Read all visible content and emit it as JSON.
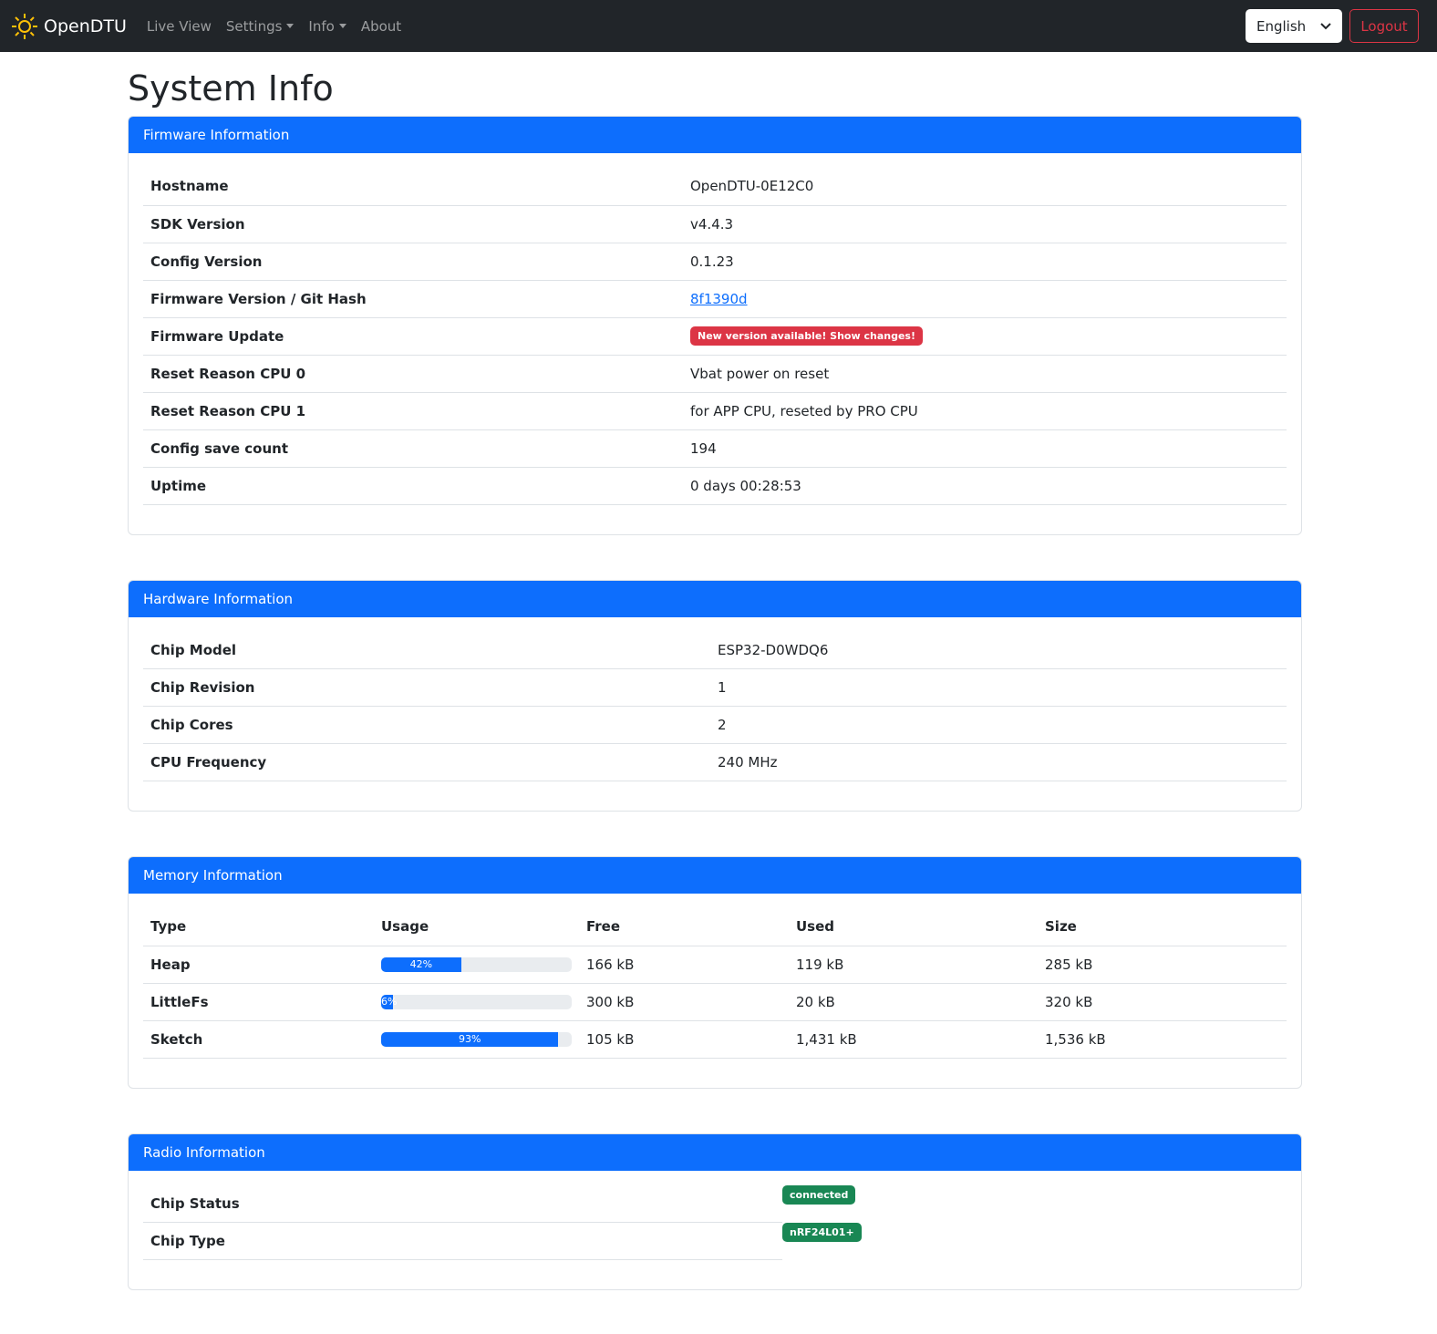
{
  "nav": {
    "brand": "OpenDTU",
    "items": [
      {
        "label": "Live View",
        "dropdown": false
      },
      {
        "label": "Settings",
        "dropdown": true
      },
      {
        "label": "Info",
        "dropdown": true
      },
      {
        "label": "About",
        "dropdown": false
      }
    ],
    "language": "English",
    "logout": "Logout"
  },
  "title": "System Info",
  "firmware": {
    "header": "Firmware Information",
    "rows": [
      {
        "label": "Hostname",
        "value": "OpenDTU-0E12C0"
      },
      {
        "label": "SDK Version",
        "value": "v4.4.3"
      },
      {
        "label": "Config Version",
        "value": "0.1.23"
      },
      {
        "label": "Firmware Version / Git Hash",
        "value": "8f1390d",
        "link": true
      },
      {
        "label": "Firmware Update",
        "value": "New version available! Show changes!",
        "badge": true
      },
      {
        "label": "Reset Reason CPU 0",
        "value": "Vbat power on reset"
      },
      {
        "label": "Reset Reason CPU 1",
        "value": "for APP CPU, reseted by PRO CPU"
      },
      {
        "label": "Config save count",
        "value": "194"
      },
      {
        "label": "Uptime",
        "value": "0 days 00:28:53"
      }
    ]
  },
  "hardware": {
    "header": "Hardware Information",
    "rows": [
      {
        "label": "Chip Model",
        "value": "ESP32-D0WDQ6"
      },
      {
        "label": "Chip Revision",
        "value": "1"
      },
      {
        "label": "Chip Cores",
        "value": "2"
      },
      {
        "label": "CPU Frequency",
        "value": "240 MHz"
      }
    ]
  },
  "memory": {
    "header": "Memory Information",
    "columns": [
      "Type",
      "Usage",
      "Free",
      "Used",
      "Size"
    ],
    "rows": [
      {
        "type": "Heap",
        "usage": 42,
        "usage_label": "42%",
        "free": "166 kB",
        "used": "119 kB",
        "size": "285 kB"
      },
      {
        "type": "LittleFs",
        "usage": 6,
        "usage_label": "6%",
        "free": "300 kB",
        "used": "20 kB",
        "size": "320 kB"
      },
      {
        "type": "Sketch",
        "usage": 93,
        "usage_label": "93%",
        "free": "105 kB",
        "used": "1,431 kB",
        "size": "1,536 kB"
      }
    ]
  },
  "radio": {
    "header": "Radio Information",
    "rows": [
      {
        "label": "Chip Status",
        "value": "connected"
      },
      {
        "label": "Chip Type",
        "value": "nRF24L01+"
      }
    ]
  },
  "colors": {
    "primary": "#0d6efd",
    "danger": "#dc3545",
    "success": "#198754",
    "navbar": "#212529"
  }
}
